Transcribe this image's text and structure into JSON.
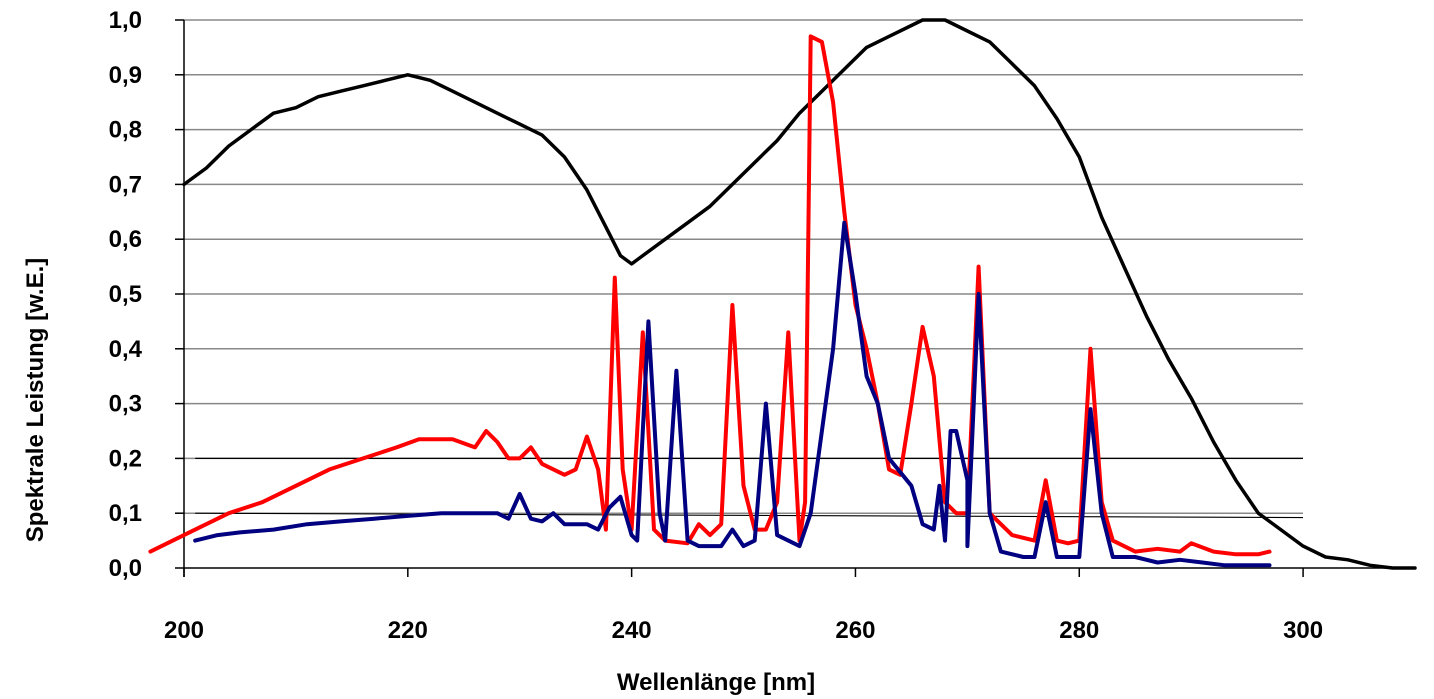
{
  "chart_data": {
    "type": "line",
    "title": "",
    "xlabel": "Wellenlänge [nm]",
    "ylabel": "Spektrale Leistung [w.E.]",
    "xlim": [
      200,
      310
    ],
    "ylim": [
      0,
      1
    ],
    "x_ticks": [
      "200",
      "220",
      "240",
      "260",
      "280",
      "300"
    ],
    "y_ticks": [
      "0,0",
      "0,1",
      "0,2",
      "0,3",
      "0,4",
      "0,5",
      "0,6",
      "0,7",
      "0,8",
      "0,9",
      "1,0"
    ],
    "grid": "horizontal",
    "legend": "none",
    "colors": {
      "grid": "#888888",
      "black_series": "#000000",
      "red_series": "#ff0000",
      "blue_series": "#000080",
      "axis": "#000000"
    },
    "series": [
      {
        "color": "#000000",
        "points": [
          [
            200,
            0.7
          ],
          [
            202,
            0.73
          ],
          [
            204,
            0.77
          ],
          [
            206,
            0.8
          ],
          [
            208,
            0.83
          ],
          [
            210,
            0.84
          ],
          [
            212,
            0.86
          ],
          [
            214,
            0.87
          ],
          [
            216,
            0.88
          ],
          [
            218,
            0.89
          ],
          [
            220,
            0.9
          ],
          [
            222,
            0.89
          ],
          [
            224,
            0.87
          ],
          [
            226,
            0.85
          ],
          [
            228,
            0.83
          ],
          [
            230,
            0.81
          ],
          [
            232,
            0.79
          ],
          [
            234,
            0.75
          ],
          [
            236,
            0.69
          ],
          [
            238,
            0.61
          ],
          [
            239,
            0.57
          ],
          [
            240,
            0.555
          ],
          [
            241,
            0.57
          ],
          [
            243,
            0.6
          ],
          [
            245,
            0.63
          ],
          [
            247,
            0.66
          ],
          [
            249,
            0.7
          ],
          [
            251,
            0.74
          ],
          [
            253,
            0.78
          ],
          [
            255,
            0.83
          ],
          [
            257,
            0.87
          ],
          [
            259,
            0.91
          ],
          [
            261,
            0.95
          ],
          [
            263,
            0.97
          ],
          [
            265,
            0.99
          ],
          [
            266,
            1.0
          ],
          [
            268,
            1.0
          ],
          [
            270,
            0.98
          ],
          [
            272,
            0.96
          ],
          [
            274,
            0.92
          ],
          [
            276,
            0.88
          ],
          [
            278,
            0.82
          ],
          [
            280,
            0.75
          ],
          [
            282,
            0.64
          ],
          [
            284,
            0.55
          ],
          [
            286,
            0.46
          ],
          [
            288,
            0.38
          ],
          [
            290,
            0.31
          ],
          [
            292,
            0.23
          ],
          [
            294,
            0.16
          ],
          [
            296,
            0.1
          ],
          [
            298,
            0.07
          ],
          [
            300,
            0.04
          ],
          [
            302,
            0.02
          ],
          [
            304,
            0.015
          ],
          [
            306,
            0.005
          ],
          [
            308,
            0.0
          ],
          [
            310,
            0.0
          ]
        ]
      },
      {
        "color": "#ff0000",
        "points": [
          [
            197,
            0.03
          ],
          [
            199,
            0.05
          ],
          [
            201,
            0.07
          ],
          [
            204,
            0.1
          ],
          [
            207,
            0.12
          ],
          [
            210,
            0.15
          ],
          [
            213,
            0.18
          ],
          [
            216,
            0.2
          ],
          [
            219,
            0.22
          ],
          [
            221,
            0.235
          ],
          [
            224,
            0.235
          ],
          [
            226,
            0.22
          ],
          [
            227,
            0.25
          ],
          [
            228,
            0.23
          ],
          [
            229,
            0.2
          ],
          [
            230,
            0.2
          ],
          [
            231,
            0.22
          ],
          [
            232,
            0.19
          ],
          [
            234,
            0.17
          ],
          [
            235,
            0.18
          ],
          [
            236,
            0.24
          ],
          [
            237,
            0.18
          ],
          [
            237.7,
            0.07
          ],
          [
            238.5,
            0.53
          ],
          [
            239.2,
            0.18
          ],
          [
            240,
            0.07
          ],
          [
            241,
            0.43
          ],
          [
            242,
            0.07
          ],
          [
            243,
            0.05
          ],
          [
            245,
            0.045
          ],
          [
            246,
            0.08
          ],
          [
            247,
            0.06
          ],
          [
            248,
            0.08
          ],
          [
            249,
            0.48
          ],
          [
            250,
            0.15
          ],
          [
            251,
            0.07
          ],
          [
            252,
            0.07
          ],
          [
            253,
            0.12
          ],
          [
            254,
            0.43
          ],
          [
            255,
            0.05
          ],
          [
            255.5,
            0.12
          ],
          [
            256,
            0.97
          ],
          [
            257,
            0.96
          ],
          [
            258,
            0.85
          ],
          [
            259,
            0.65
          ],
          [
            260,
            0.48
          ],
          [
            261,
            0.4
          ],
          [
            262,
            0.3
          ],
          [
            263,
            0.18
          ],
          [
            264,
            0.17
          ],
          [
            265,
            0.3
          ],
          [
            266,
            0.44
          ],
          [
            267,
            0.35
          ],
          [
            268,
            0.12
          ],
          [
            269,
            0.1
          ],
          [
            270,
            0.1
          ],
          [
            271,
            0.55
          ],
          [
            272,
            0.1
          ],
          [
            273,
            0.08
          ],
          [
            274,
            0.06
          ],
          [
            276,
            0.05
          ],
          [
            277,
            0.16
          ],
          [
            278,
            0.05
          ],
          [
            279,
            0.045
          ],
          [
            280,
            0.05
          ],
          [
            281,
            0.4
          ],
          [
            282,
            0.12
          ],
          [
            283,
            0.05
          ],
          [
            285,
            0.03
          ],
          [
            287,
            0.035
          ],
          [
            289,
            0.03
          ],
          [
            290,
            0.045
          ],
          [
            292,
            0.03
          ],
          [
            294,
            0.025
          ],
          [
            296,
            0.025
          ],
          [
            297,
            0.03
          ]
        ]
      },
      {
        "color": "#000080",
        "points": [
          [
            201,
            0.05
          ],
          [
            203,
            0.06
          ],
          [
            205,
            0.065
          ],
          [
            208,
            0.07
          ],
          [
            211,
            0.08
          ],
          [
            214,
            0.085
          ],
          [
            217,
            0.09
          ],
          [
            220,
            0.095
          ],
          [
            223,
            0.1
          ],
          [
            226,
            0.1
          ],
          [
            228,
            0.1
          ],
          [
            229,
            0.09
          ],
          [
            230,
            0.135
          ],
          [
            231,
            0.09
          ],
          [
            232,
            0.085
          ],
          [
            233,
            0.1
          ],
          [
            234,
            0.08
          ],
          [
            236,
            0.08
          ],
          [
            237,
            0.07
          ],
          [
            238,
            0.11
          ],
          [
            239,
            0.13
          ],
          [
            240,
            0.06
          ],
          [
            240.5,
            0.05
          ],
          [
            241.5,
            0.45
          ],
          [
            242.5,
            0.1
          ],
          [
            243,
            0.05
          ],
          [
            244,
            0.36
          ],
          [
            245,
            0.05
          ],
          [
            246,
            0.04
          ],
          [
            248,
            0.04
          ],
          [
            249,
            0.07
          ],
          [
            250,
            0.04
          ],
          [
            251,
            0.05
          ],
          [
            252,
            0.3
          ],
          [
            253,
            0.06
          ],
          [
            254,
            0.05
          ],
          [
            255,
            0.04
          ],
          [
            256,
            0.1
          ],
          [
            257,
            0.25
          ],
          [
            258,
            0.4
          ],
          [
            259,
            0.63
          ],
          [
            260,
            0.5
          ],
          [
            261,
            0.35
          ],
          [
            262,
            0.3
          ],
          [
            263,
            0.2
          ],
          [
            265,
            0.15
          ],
          [
            266,
            0.08
          ],
          [
            267,
            0.07
          ],
          [
            267.5,
            0.15
          ],
          [
            268,
            0.05
          ],
          [
            268.5,
            0.25
          ],
          [
            269,
            0.25
          ],
          [
            270,
            0.16
          ],
          [
            270,
            0.04
          ],
          [
            271,
            0.5
          ],
          [
            272,
            0.1
          ],
          [
            273,
            0.03
          ],
          [
            275,
            0.02
          ],
          [
            276,
            0.02
          ],
          [
            277,
            0.12
          ],
          [
            278,
            0.02
          ],
          [
            279,
            0.02
          ],
          [
            280,
            0.02
          ],
          [
            281,
            0.29
          ],
          [
            282,
            0.1
          ],
          [
            283,
            0.02
          ],
          [
            285,
            0.02
          ],
          [
            287,
            0.01
          ],
          [
            289,
            0.015
          ],
          [
            291,
            0.01
          ],
          [
            293,
            0.005
          ],
          [
            295,
            0.005
          ],
          [
            297,
            0.005
          ]
        ]
      }
    ]
  }
}
